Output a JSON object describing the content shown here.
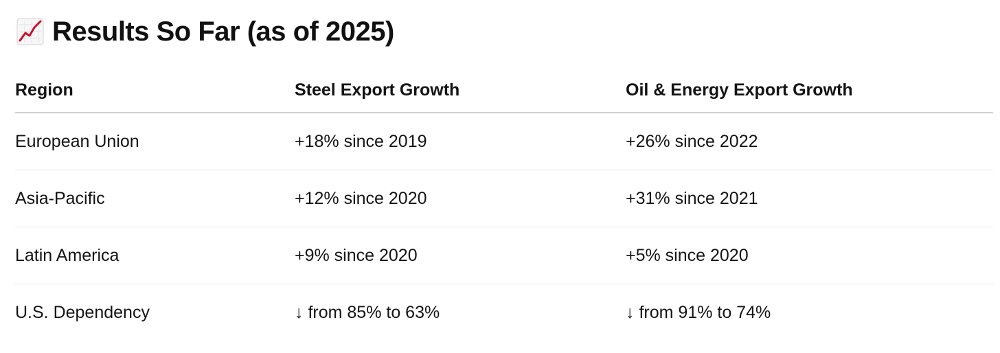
{
  "heading": {
    "icon": "chart-increasing-icon",
    "text": "Results So Far (as of 2025)"
  },
  "table": {
    "columns": [
      "Region",
      "Steel Export Growth",
      "Oil & Energy Export Growth"
    ],
    "rows": [
      [
        "European Union",
        "+18% since 2019",
        "+26% since 2022"
      ],
      [
        "Asia-Pacific",
        "+12% since 2020",
        "+31% since 2021"
      ],
      [
        "Latin America",
        "+9% since 2020",
        "+5% since 2020"
      ],
      [
        "U.S. Dependency",
        "↓ from 85% to 63%",
        "↓ from 91% to 74%"
      ]
    ]
  },
  "colors": {
    "icon_line": "#c8102e",
    "text": "#111111",
    "header_rule": "#cfcfcf",
    "row_rule": "#e8e8e8"
  }
}
